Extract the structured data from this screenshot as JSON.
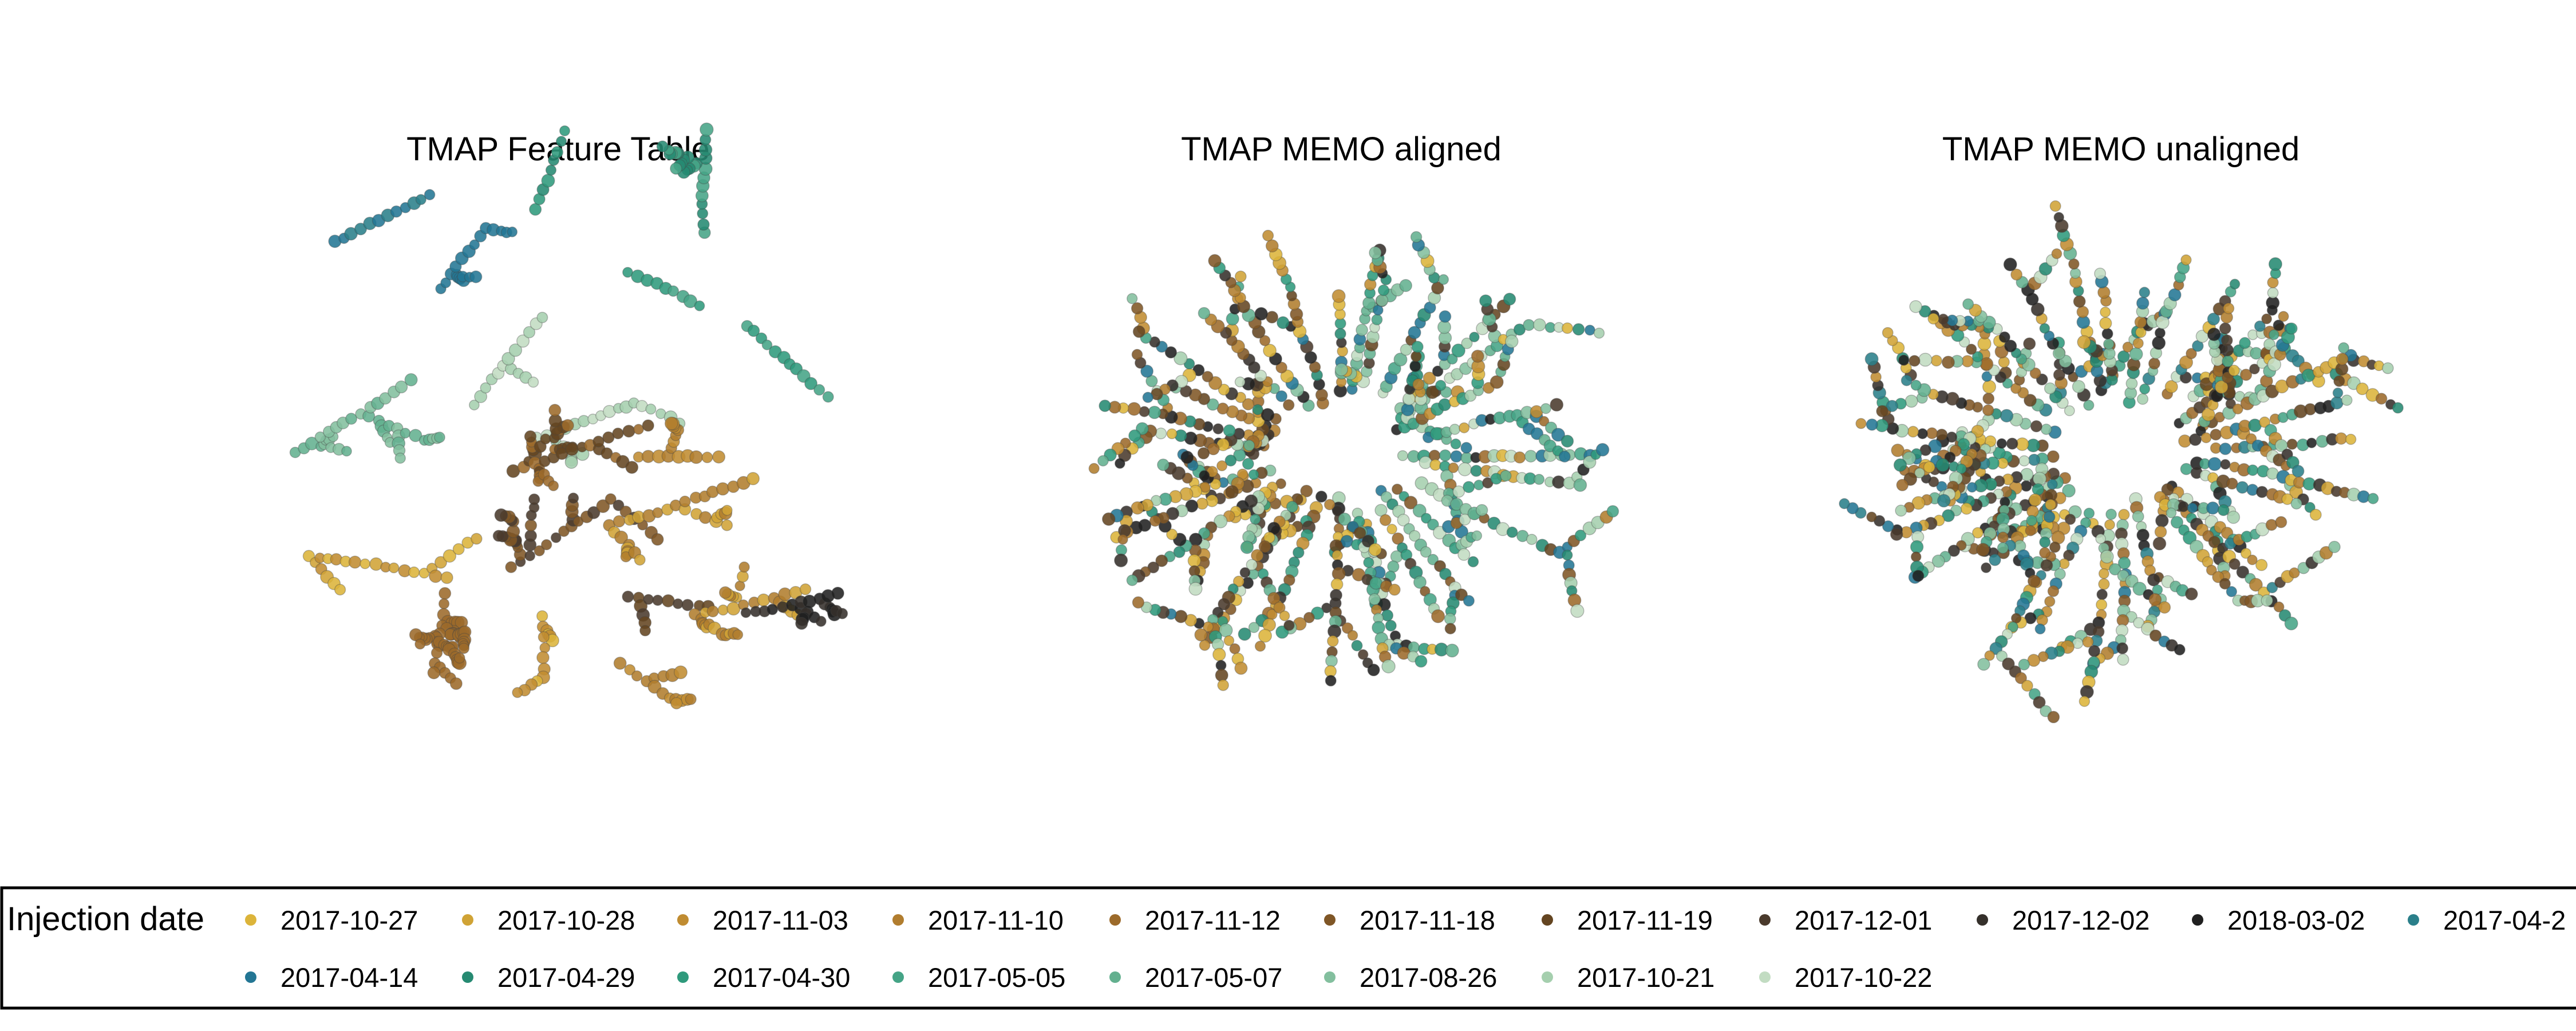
{
  "chart_data": [
    {
      "type": "scatter",
      "title": "TMAP Feature Table",
      "axes_visible": false,
      "layout": "tree-map with colored branches"
    },
    {
      "type": "scatter",
      "title": "TMAP MEMO aligned",
      "axes_visible": false,
      "layout": "tree-map with colored branches"
    },
    {
      "type": "scatter",
      "title": "TMAP MEMO unaligned",
      "axes_visible": false,
      "layout": "tree-map with colored branches"
    }
  ],
  "legend": {
    "title": "Injection date",
    "placement": "bottom",
    "entries": [
      {
        "label": "2017-10-27",
        "color": "#dcb43a"
      },
      {
        "label": "2017-10-28",
        "color": "#d0a335"
      },
      {
        "label": "2017-11-03",
        "color": "#c08c31"
      },
      {
        "label": "2017-11-10",
        "color": "#b17d2e"
      },
      {
        "label": "2017-11-12",
        "color": "#9c6a2a"
      },
      {
        "label": "2017-11-18",
        "color": "#7f5626"
      },
      {
        "label": "2017-11-19",
        "color": "#644521"
      },
      {
        "label": "2017-12-01",
        "color": "#4a3a2c"
      },
      {
        "label": "2017-12-02",
        "color": "#35302b"
      },
      {
        "label": "2018-03-02",
        "color": "#202020"
      },
      {
        "label": "2017-04-2",
        "color": "#2a7f8a"
      },
      {
        "label": "2017-04-14",
        "color": "#237694"
      },
      {
        "label": "2017-04-29",
        "color": "#268a72"
      },
      {
        "label": "2017-04-30",
        "color": "#2f9a7c"
      },
      {
        "label": "2017-05-05",
        "color": "#45a486"
      },
      {
        "label": "2017-05-07",
        "color": "#63b08f"
      },
      {
        "label": "2017-08-26",
        "color": "#83bf9e"
      },
      {
        "label": "2017-10-21",
        "color": "#a5cfae"
      },
      {
        "label": "2017-10-22",
        "color": "#c2dcc2"
      }
    ]
  }
}
